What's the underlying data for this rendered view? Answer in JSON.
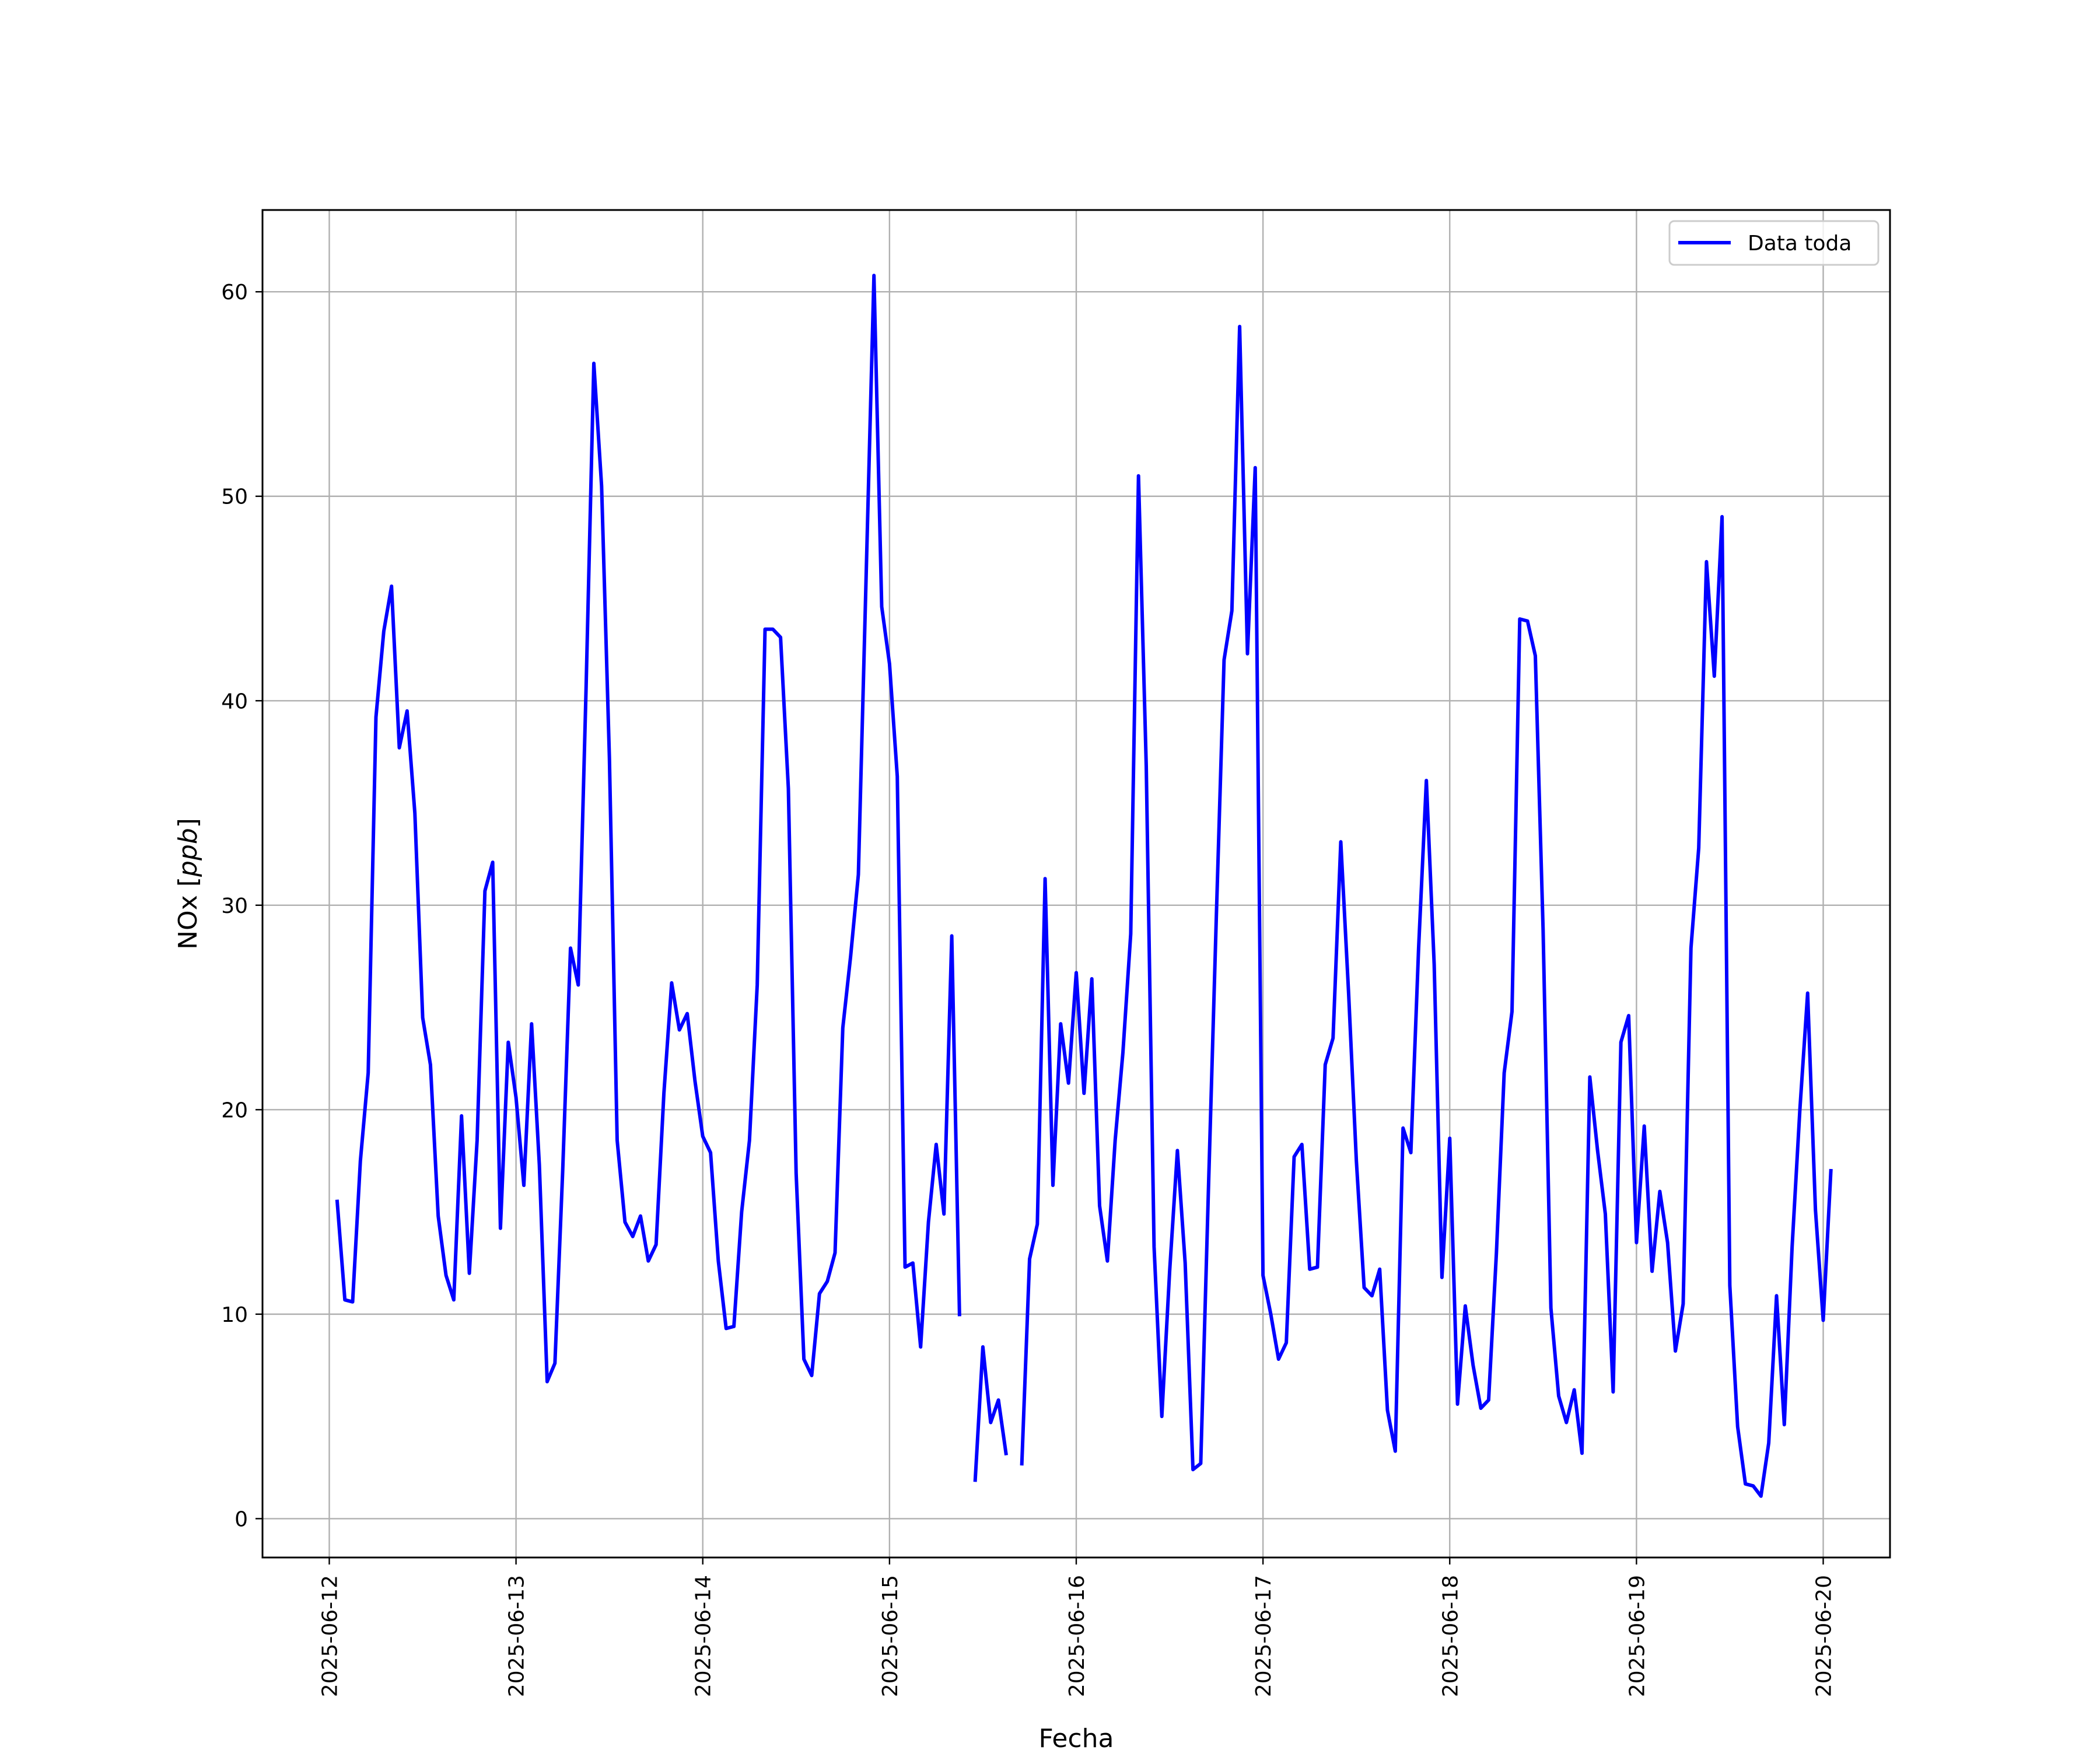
{
  "chart_data": {
    "type": "line",
    "title": "",
    "xlabel": "Fecha",
    "ylabel_prefix": "NOx [",
    "ylabel_unit": "ppb",
    "ylabel_suffix": "]",
    "xlim": [
      "2025-06-11 15:25",
      "2025-06-20 08:35"
    ],
    "ylim": [
      -1.9,
      64
    ],
    "x_ticks": [
      "2025-06-12",
      "2025-06-13",
      "2025-06-14",
      "2025-06-15",
      "2025-06-16",
      "2025-06-17",
      "2025-06-18",
      "2025-06-19",
      "2025-06-20"
    ],
    "y_ticks": [
      0,
      10,
      20,
      30,
      40,
      50,
      60
    ],
    "grid": true,
    "legend": "upper right",
    "series": [
      {
        "name": "Data toda",
        "color": "#0000ff",
        "x_start": "2025-06-12 01:00",
        "x_step_hours": 1,
        "values": [
          15.6,
          10.7,
          10.6,
          17.5,
          21.8,
          39.2,
          43.4,
          45.6,
          37.7,
          39.5,
          34.5,
          24.5,
          22.2,
          14.8,
          11.9,
          10.7,
          19.7,
          12.0,
          18.5,
          30.7,
          32.1,
          14.2,
          23.3,
          20.6,
          16.3,
          24.2,
          17.3,
          6.7,
          7.6,
          17.0,
          27.9,
          26.1,
          40.6,
          56.5,
          50.5,
          37.2,
          18.5,
          14.5,
          13.8,
          14.8,
          12.6,
          13.4,
          20.8,
          26.2,
          23.9,
          24.7,
          21.4,
          18.7,
          17.9,
          12.6,
          9.3,
          9.4,
          15.0,
          18.5,
          26.1,
          43.5,
          43.5,
          43.1,
          35.7,
          16.9,
          7.8,
          7.0,
          11.0,
          11.6,
          13.0,
          24.0,
          27.5,
          31.5,
          46.2,
          60.8,
          44.6,
          41.8,
          36.3,
          12.3,
          12.5,
          8.4,
          14.5,
          18.3,
          14.9,
          28.5,
          9.9,
          null,
          1.8,
          8.4,
          4.7,
          5.8,
          3.1,
          null,
          2.6,
          12.7,
          14.4,
          31.3,
          16.3,
          24.2,
          21.3,
          26.7,
          20.8,
          26.4,
          15.3,
          12.6,
          18.5,
          22.8,
          28.6,
          51.0,
          36.8,
          13.3,
          5.0,
          12.1,
          18.0,
          12.5,
          2.4,
          2.7,
          16.3,
          29.4,
          42.0,
          44.4,
          58.3,
          42.3,
          51.4,
          11.9,
          10.0,
          7.8,
          8.6,
          17.7,
          18.3,
          12.2,
          12.3,
          22.2,
          23.5,
          33.1,
          25.7,
          17.5,
          11.3,
          10.9,
          12.2,
          5.3,
          3.3,
          19.1,
          17.9,
          27.9,
          36.1,
          27.1,
          11.8,
          18.6,
          5.6,
          10.4,
          7.5,
          5.4,
          5.8,
          13.0,
          21.8,
          24.8,
          44.0,
          43.9,
          42.2,
          28.8,
          10.3,
          6.0,
          4.7,
          6.3,
          3.2,
          21.6,
          18.0,
          14.9,
          6.2,
          23.3,
          24.6,
          13.5,
          19.2,
          12.1,
          16.0,
          13.5,
          8.2,
          10.5,
          27.9,
          32.8,
          46.8,
          41.2,
          49.0,
          11.4,
          4.5,
          1.7,
          1.6,
          1.1,
          3.7,
          10.9,
          4.6,
          13.3,
          20.0,
          25.7,
          15.1,
          9.7,
          17.1
        ]
      }
    ]
  }
}
